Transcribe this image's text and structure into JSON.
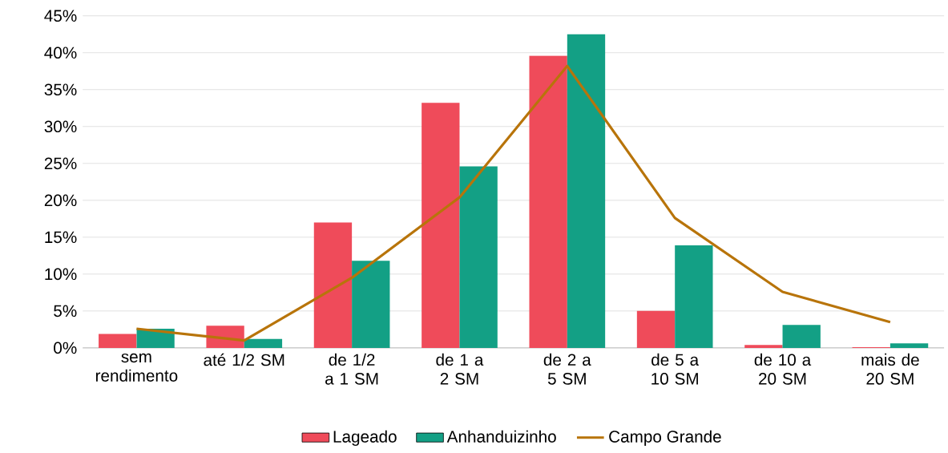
{
  "chart_data": {
    "type": "bar",
    "categories": [
      "sem rendimento",
      "até 1/2 SM",
      "de 1/2 a 1 SM",
      "de 1 a 2 SM",
      "de 2 a 5 SM",
      "de 5 a 10 SM",
      "de 10 a 20 SM",
      "mais de 20 SM"
    ],
    "series": [
      {
        "name": "Lageado",
        "color": "#ef4b5a",
        "values": [
          1.9,
          3.0,
          17.0,
          33.2,
          39.6,
          5.0,
          0.4,
          0.1
        ]
      },
      {
        "name": "Anhanduizinho",
        "color": "#13a085",
        "values": [
          2.6,
          1.2,
          11.8,
          24.6,
          42.5,
          13.9,
          3.1,
          0.6
        ]
      },
      {
        "name": "Campo Grande",
        "type": "line",
        "color": "#b8740a",
        "values": [
          2.6,
          1.0,
          9.5,
          20.4,
          38.2,
          17.6,
          7.6,
          3.5
        ]
      }
    ],
    "ylim": [
      0,
      45
    ],
    "yticks": [
      {
        "value": 0,
        "label": "0%"
      },
      {
        "value": 5,
        "label": "5%"
      },
      {
        "value": 10,
        "label": "10%"
      },
      {
        "value": 15,
        "label": "15%"
      },
      {
        "value": 20,
        "label": "20%"
      },
      {
        "value": 25,
        "label": "25%"
      },
      {
        "value": 30,
        "label": "30%"
      },
      {
        "value": 35,
        "label": "35%"
      },
      {
        "value": 40,
        "label": "40%"
      },
      {
        "value": 45,
        "label": "45%"
      }
    ],
    "grid": "y",
    "legend": "bottom"
  }
}
